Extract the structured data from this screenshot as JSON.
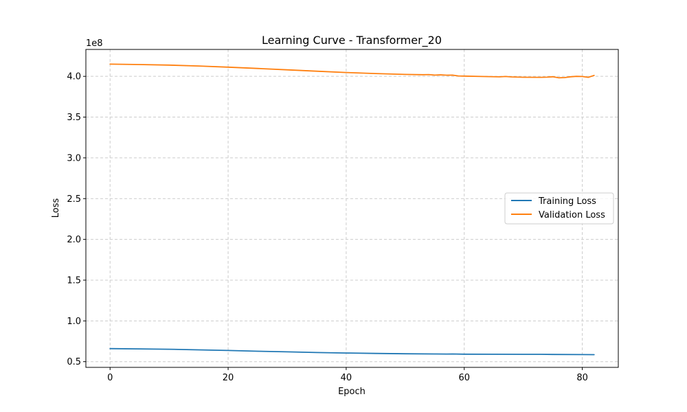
{
  "chart_data": {
    "type": "line",
    "title": "Learning Curve - Transformer_20",
    "xlabel": "Epoch",
    "ylabel": "Loss",
    "y_offset_label": "1e8",
    "xlim": [
      -4.1,
      86.1
    ],
    "ylim": [
      0.43,
      4.33
    ],
    "x_ticks": [
      0,
      20,
      40,
      60,
      80
    ],
    "y_ticks": [
      0.5,
      1.0,
      1.5,
      2.0,
      2.5,
      3.0,
      3.5,
      4.0
    ],
    "grid": true,
    "legend_position": "center-right",
    "series": [
      {
        "name": "Training Loss",
        "color": "#1f77b4",
        "x": [
          0,
          5,
          10,
          15,
          20,
          25,
          30,
          35,
          40,
          45,
          50,
          55,
          57,
          58,
          60,
          65,
          70,
          73,
          75,
          80,
          82
        ],
        "values": [
          0.66,
          0.657,
          0.652,
          0.645,
          0.637,
          0.628,
          0.62,
          0.612,
          0.606,
          0.601,
          0.597,
          0.594,
          0.593,
          0.594,
          0.592,
          0.591,
          0.59,
          0.59,
          0.588,
          0.587,
          0.586
        ]
      },
      {
        "name": "Validation Loss",
        "color": "#ff7f0e",
        "x": [
          0,
          5,
          10,
          15,
          20,
          25,
          30,
          35,
          40,
          45,
          50,
          53,
          54,
          55,
          56,
          57,
          58,
          59,
          60,
          63,
          66,
          67,
          68,
          70,
          73,
          74,
          75,
          76,
          77,
          78,
          79,
          80,
          81,
          82
        ],
        "values": [
          4.15,
          4.145,
          4.138,
          4.127,
          4.113,
          4.097,
          4.08,
          4.063,
          4.047,
          4.034,
          4.023,
          4.02,
          4.022,
          4.015,
          4.018,
          4.014,
          4.015,
          4.005,
          4.003,
          3.998,
          3.994,
          3.998,
          3.993,
          3.989,
          3.988,
          3.99,
          3.995,
          3.982,
          3.985,
          3.995,
          4.0,
          3.998,
          3.988,
          4.012
        ]
      }
    ]
  }
}
